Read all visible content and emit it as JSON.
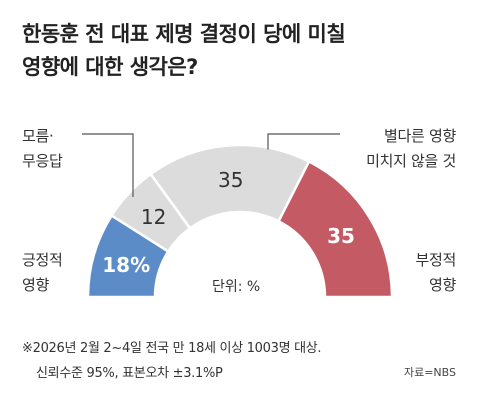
{
  "title_lines": [
    "한동훈 전 대표 제명 결정이 당에 미칠",
    "영향에 대한 생각은?"
  ],
  "chart_data": {
    "type": "pie",
    "shape": "half-donut",
    "title": "한동훈 전 대표 제명 결정이 당에 미칠 영향에 대한 생각은?",
    "unit_label": "단위: %",
    "slices": [
      {
        "name_lines": [
          "긍정적",
          "영향"
        ],
        "value": 18,
        "value_label": "18%",
        "color": "#5b8cc7"
      },
      {
        "name_lines": [
          "모름·",
          "무응답"
        ],
        "value": 12,
        "value_label": "12",
        "color": "#dcdcdc"
      },
      {
        "name_lines": [
          "별다른 영향",
          "미치지 않을 것"
        ],
        "value": 35,
        "value_label": "35",
        "color": "#dcdcdc"
      },
      {
        "name_lines": [
          "부정적",
          "영향"
        ],
        "value": 35,
        "value_label": "35",
        "color": "#c35a64"
      }
    ]
  },
  "footnote_lines": [
    "※2026년 2월 2~4일 전국 만 18세 이상 1003명 대상.",
    "신뢰수준 95%, 표본오차 ±3.1%P"
  ],
  "source": "자료=NBS",
  "colors": {
    "positive": "#5b8cc7",
    "neutral": "#dcdcdc",
    "negative": "#c35a64",
    "leader_line": "#555555"
  }
}
